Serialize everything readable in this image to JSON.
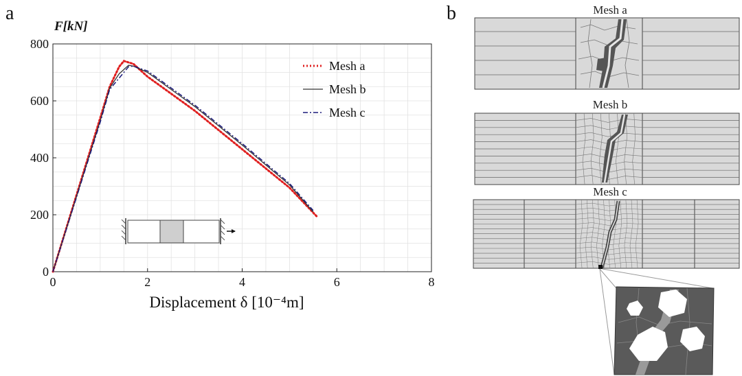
{
  "figure": {
    "panel_a_label": "a",
    "panel_b_label": "b"
  },
  "chart_data": {
    "type": "line",
    "ylabel": "F[kN]",
    "xlabel": "Displacement δ [10⁻⁴m]",
    "xlim": [
      0,
      8
    ],
    "ylim": [
      0,
      800
    ],
    "x_ticks": [
      0,
      2,
      4,
      6,
      8
    ],
    "y_ticks": [
      0,
      200,
      400,
      600,
      800
    ],
    "grid": true,
    "legend_position": "top-right",
    "series": [
      {
        "name": "Mesh a",
        "color": "#e02020",
        "style": "dotted",
        "x": [
          0,
          0.5,
          1.0,
          1.2,
          1.4,
          1.5,
          1.7,
          2.0,
          3.0,
          4.0,
          5.0,
          5.6
        ],
        "y": [
          0,
          270,
          540,
          650,
          720,
          740,
          730,
          685,
          565,
          430,
          295,
          190
        ]
      },
      {
        "name": "Mesh b",
        "color": "#333333",
        "style": "solid",
        "x": [
          0,
          0.5,
          1.0,
          1.2,
          1.4,
          1.6,
          1.7,
          2.0,
          3.0,
          4.0,
          5.0,
          5.5
        ],
        "y": [
          0,
          265,
          530,
          645,
          695,
          725,
          722,
          700,
          580,
          445,
          305,
          210
        ]
      },
      {
        "name": "Mesh c",
        "color": "#1a1a7a",
        "style": "dashdot",
        "x": [
          0,
          0.5,
          1.0,
          1.2,
          1.4,
          1.6,
          1.7,
          2.0,
          3.0,
          4.0,
          5.0,
          5.5
        ],
        "y": [
          0,
          262,
          525,
          640,
          680,
          720,
          722,
          705,
          585,
          450,
          310,
          215
        ]
      }
    ]
  },
  "meshes": [
    {
      "title": "Mesh a"
    },
    {
      "title": "Mesh b"
    },
    {
      "title": "Mesh c"
    }
  ]
}
